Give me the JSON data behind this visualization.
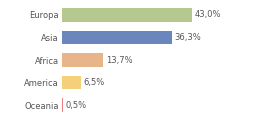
{
  "categories": [
    "Europa",
    "Asia",
    "Africa",
    "America",
    "Oceania"
  ],
  "values": [
    43.0,
    36.3,
    13.7,
    6.5,
    0.5
  ],
  "labels": [
    "43,0%",
    "36,3%",
    "13,7%",
    "6,5%",
    "0,5%"
  ],
  "bar_colors": [
    "#b5c98e",
    "#6b85bd",
    "#e8b48a",
    "#f5d07a",
    "#f08080"
  ],
  "background_color": "#ffffff",
  "xlim": [
    0,
    70
  ],
  "label_fontsize": 6.0,
  "tick_fontsize": 6.0,
  "bar_height": 0.6
}
